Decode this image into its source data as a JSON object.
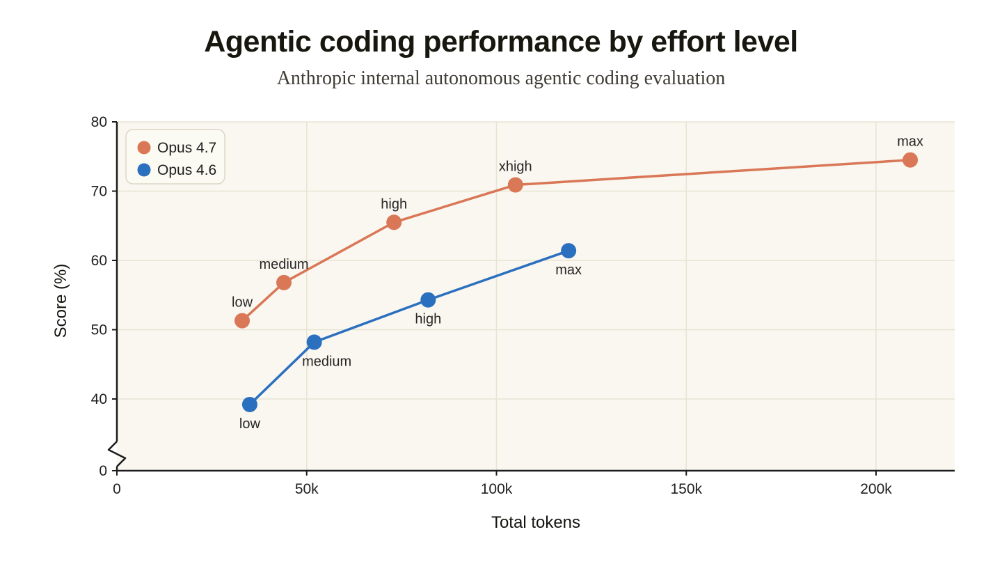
{
  "chart_data": {
    "type": "line",
    "title": "Agentic coding performance by effort level",
    "subtitle": "Anthropic internal autonomous agentic coding evaluation",
    "xlabel": "Total tokens",
    "ylabel": "Score (%)",
    "xlim": [
      0,
      220000
    ],
    "ylim": [
      0,
      80
    ],
    "y_axis_break": {
      "between": [
        0,
        40
      ]
    },
    "grid": true,
    "legend_position": "top-left",
    "x_ticks": [
      {
        "value": 0,
        "label": "0"
      },
      {
        "value": 50000,
        "label": "50k"
      },
      {
        "value": 100000,
        "label": "100k"
      },
      {
        "value": 150000,
        "label": "150k"
      },
      {
        "value": 200000,
        "label": "200k"
      }
    ],
    "y_ticks": [
      {
        "value": 0,
        "label": "0"
      },
      {
        "value": 40,
        "label": "40"
      },
      {
        "value": 50,
        "label": "50"
      },
      {
        "value": 60,
        "label": "60"
      },
      {
        "value": 70,
        "label": "70"
      },
      {
        "value": 80,
        "label": "80"
      }
    ],
    "series": [
      {
        "name": "Opus 4.7",
        "color": "#D97757",
        "points": [
          {
            "effort": "low",
            "tokens": 33000,
            "score": 51.3,
            "label_pos": "above"
          },
          {
            "effort": "medium",
            "tokens": 44000,
            "score": 56.8,
            "label_pos": "above"
          },
          {
            "effort": "high",
            "tokens": 73000,
            "score": 65.5,
            "label_pos": "above"
          },
          {
            "effort": "xhigh",
            "tokens": 105000,
            "score": 70.9,
            "label_pos": "above"
          },
          {
            "effort": "max",
            "tokens": 209000,
            "score": 74.5,
            "label_pos": "above"
          }
        ]
      },
      {
        "name": "Opus 4.6",
        "color": "#2B6FBF",
        "points": [
          {
            "effort": "low",
            "tokens": 35000,
            "score": 39.2,
            "label_pos": "below"
          },
          {
            "effort": "medium",
            "tokens": 52000,
            "score": 48.2,
            "label_pos": "below",
            "label_dx": 18
          },
          {
            "effort": "high",
            "tokens": 82000,
            "score": 54.3,
            "label_pos": "below"
          },
          {
            "effort": "max",
            "tokens": 119000,
            "score": 61.4,
            "label_pos": "below"
          }
        ]
      }
    ],
    "colors": {
      "plot_bg": "#F9F7EF",
      "grid": "#E8E4D5",
      "axis": "#1C1C1C",
      "text": "#1F1F1F",
      "point_label": "#262626",
      "legend_bg": "#FBFAF3",
      "legend_border": "#DBD7C8"
    }
  }
}
